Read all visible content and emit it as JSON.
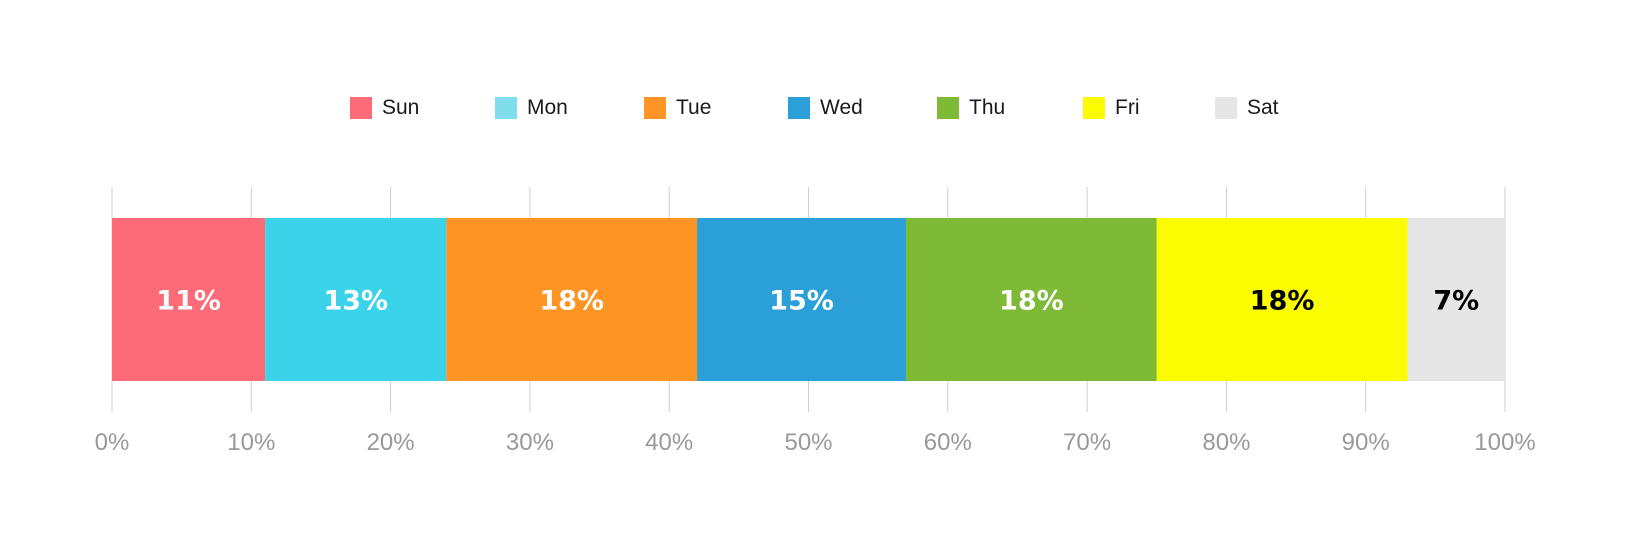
{
  "chart_data": {
    "type": "bar",
    "orientation": "horizontal",
    "stacked": true,
    "categories": [
      ""
    ],
    "series": [
      {
        "name": "Sun",
        "values": [
          11
        ],
        "label": "11%",
        "color": "#fe6b78",
        "label_color": "#ffffff"
      },
      {
        "name": "Mon",
        "values": [
          13
        ],
        "label": "13%",
        "color": "#3ad3ea",
        "label_color": "#ffffff"
      },
      {
        "name": "Tue",
        "values": [
          18
        ],
        "label": "18%",
        "color": "#fe9423",
        "label_color": "#ffffff"
      },
      {
        "name": "Wed",
        "values": [
          15
        ],
        "label": "15%",
        "color": "#2ba0d8",
        "label_color": "#ffffff"
      },
      {
        "name": "Thu",
        "values": [
          18
        ],
        "label": "18%",
        "color": "#7fba36",
        "label_color": "#ffffff"
      },
      {
        "name": "Fri",
        "values": [
          18
        ],
        "label": "18%",
        "color": "#fbfc02",
        "label_color": "#000000"
      },
      {
        "name": "Sat",
        "values": [
          7
        ],
        "label": "7%",
        "color": "#e6e6e6",
        "label_color": "#000000"
      }
    ],
    "legend_colors": {
      "Sun": "#fe6b78",
      "Mon": "#7fdcea",
      "Tue": "#fe9423",
      "Wed": "#2ba0d8",
      "Thu": "#7fba36",
      "Fri": "#fbfc02",
      "Sat": "#e6e6e6"
    },
    "xlim": [
      0,
      100
    ],
    "xticks": [
      "0%",
      "10%",
      "20%",
      "30%",
      "40%",
      "50%",
      "60%",
      "70%",
      "80%",
      "90%",
      "100%"
    ],
    "grid": true,
    "legend_position": "top",
    "title": "",
    "xlabel": "",
    "ylabel": ""
  }
}
